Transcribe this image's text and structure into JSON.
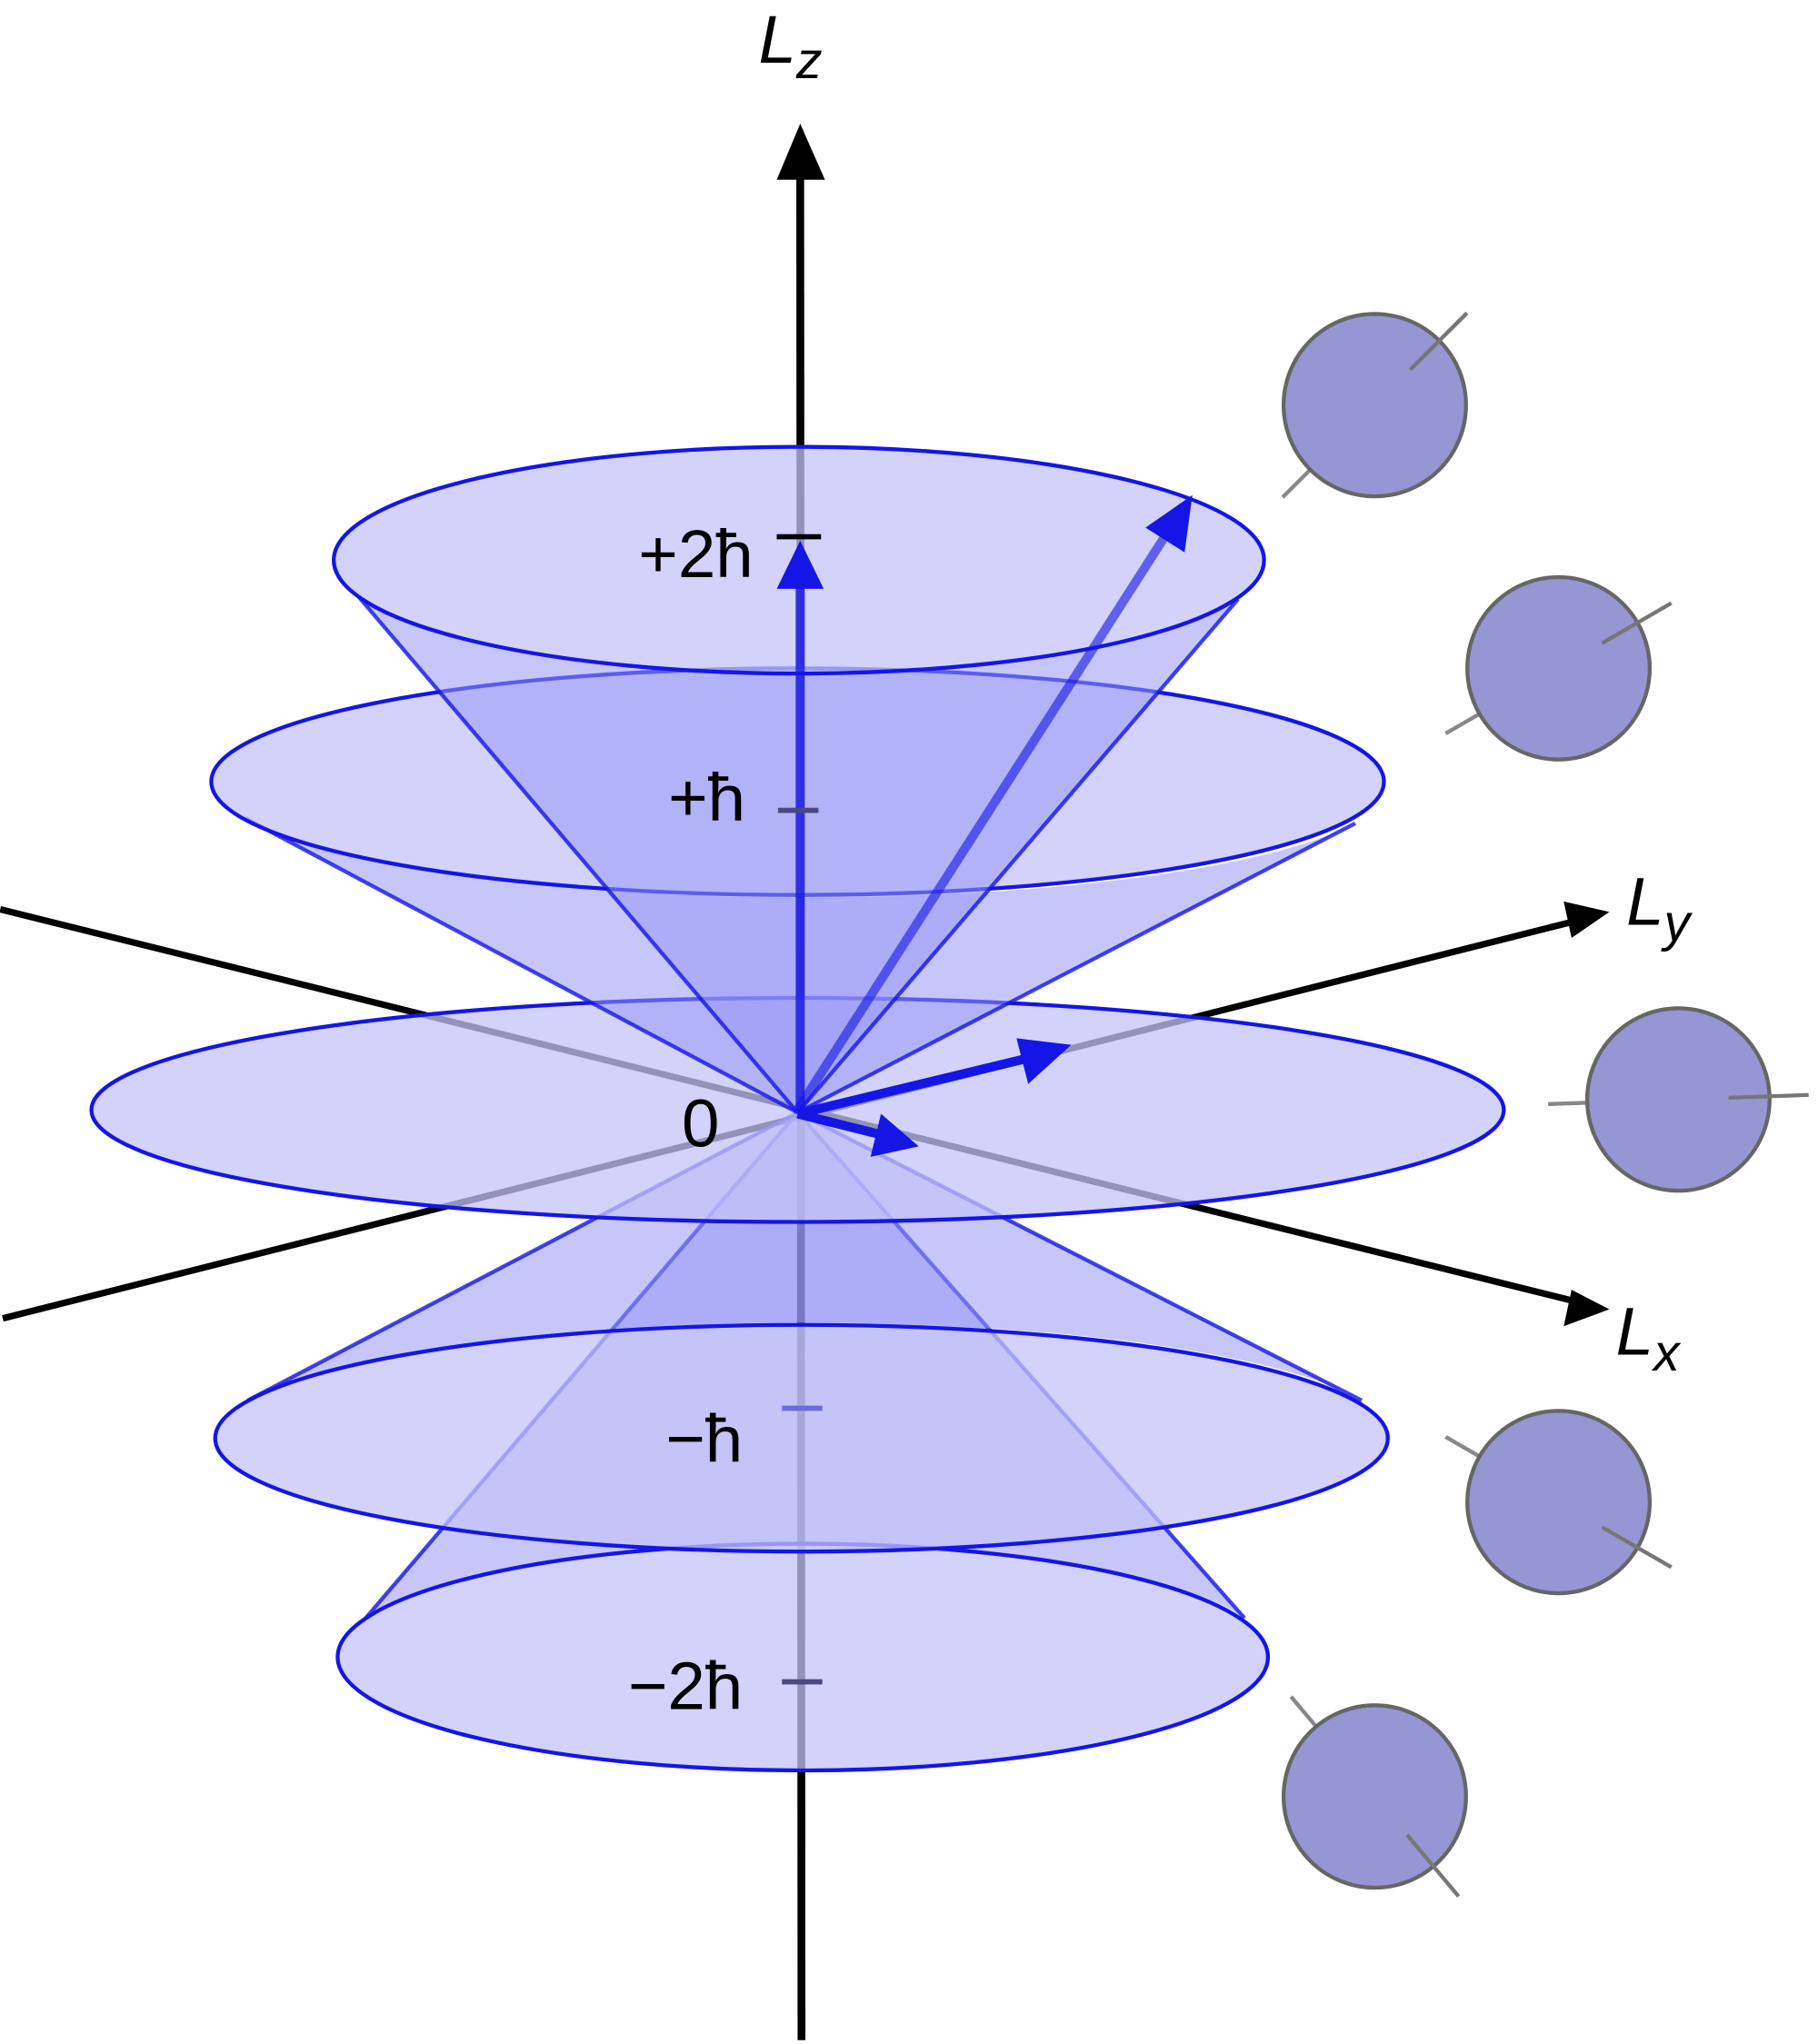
{
  "axes": {
    "z_label": "L",
    "z_sub": "z",
    "y_label": "L",
    "y_sub": "y",
    "x_label": "L",
    "x_sub": "x"
  },
  "levels": [
    {
      "label": "+2ħ",
      "m": 2
    },
    {
      "label": "+ħ",
      "m": 1
    },
    {
      "label": "0",
      "m": 0
    },
    {
      "label": "−ħ",
      "m": -1
    },
    {
      "label": "−2ħ",
      "m": -2
    }
  ],
  "colors": {
    "disc_fill": "#c3c3f8",
    "cone_fill": "#9898f5",
    "outline": "#1515e6",
    "vector": "#1515e6",
    "sphere_fill": "#9696d4",
    "sphere_stroke": "#666666",
    "axis": "#000000"
  }
}
